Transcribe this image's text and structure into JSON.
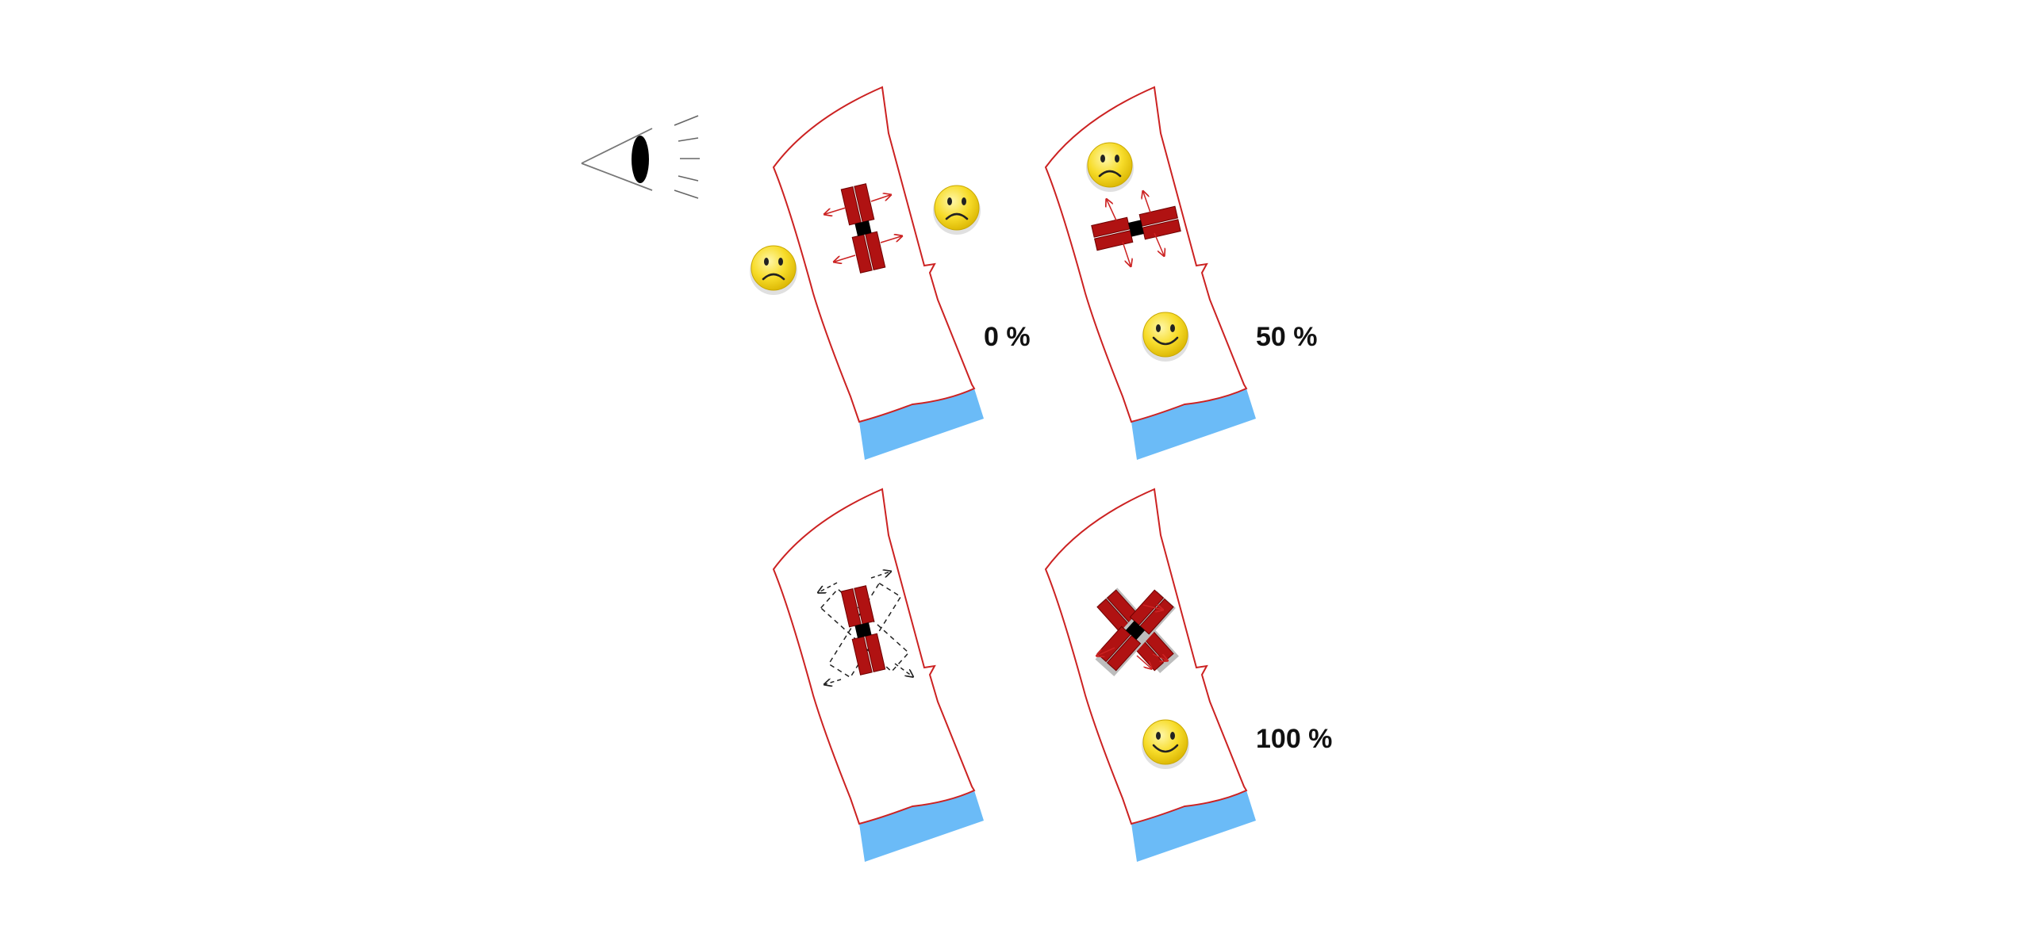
{
  "colors": {
    "plot_outline": "#cc2222",
    "building": "#b01212",
    "building_edge": "#6e0000",
    "core": "#000000",
    "water": "#6bbbf7",
    "face": "#f7dc2a",
    "face_edge": "#c9a800",
    "eye": "#000000",
    "dashed": "#222222",
    "label": "#111111"
  },
  "viewer": {
    "icon": "eye-icon"
  },
  "panels": [
    {
      "id": "top-left",
      "label": "0 %",
      "layout": "vertical",
      "faces": [
        {
          "mood": "sad"
        },
        {
          "mood": "sad"
        }
      ]
    },
    {
      "id": "top-right",
      "label": "50 %",
      "layout": "rotated",
      "faces": [
        {
          "mood": "sad"
        },
        {
          "mood": "happy"
        }
      ]
    },
    {
      "id": "bottom-left",
      "label": "",
      "layout": "variants",
      "faces": []
    },
    {
      "id": "bottom-right",
      "label": "100 %",
      "layout": "diagonal",
      "faces": [
        {
          "mood": "happy"
        }
      ]
    }
  ]
}
